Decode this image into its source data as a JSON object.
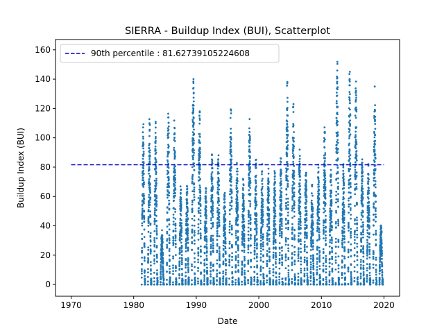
{
  "chart_data": {
    "type": "scatter",
    "title": "SIERRA - Buildup Index (BUI), Scatterplot",
    "xlabel": "Date",
    "ylabel": "Buildup Index (BUI)",
    "xlim": [
      1967.5,
      2022.5
    ],
    "ylim": [
      -8,
      167
    ],
    "xticks": [
      1970,
      1980,
      1990,
      2000,
      2010,
      2020
    ],
    "yticks": [
      0,
      20,
      40,
      60,
      80,
      100,
      120,
      140,
      160
    ],
    "grid": false,
    "legend_position": "top-left",
    "series": [
      {
        "name": "Buildup Index (BUI)",
        "kind": "scatter",
        "color": "#1f77b4",
        "seasons": [
          {
            "year": 1981,
            "max": 113
          },
          {
            "year": 1982,
            "max": 114
          },
          {
            "year": 1983,
            "max": 111
          },
          {
            "year": 1984,
            "max": 37
          },
          {
            "year": 1985,
            "max": 122
          },
          {
            "year": 1986,
            "max": 114
          },
          {
            "year": 1987,
            "max": 67
          },
          {
            "year": 1988,
            "max": 67
          },
          {
            "year": 1989,
            "max": 146
          },
          {
            "year": 1990,
            "max": 121
          },
          {
            "year": 1991,
            "max": 68
          },
          {
            "year": 1992,
            "max": 89
          },
          {
            "year": 1993,
            "max": 90
          },
          {
            "year": 1994,
            "max": 67
          },
          {
            "year": 1995,
            "max": 124
          },
          {
            "year": 1996,
            "max": 86
          },
          {
            "year": 1997,
            "max": 72
          },
          {
            "year": 1998,
            "max": 116
          },
          {
            "year": 1999,
            "max": 86
          },
          {
            "year": 2000,
            "max": 82
          },
          {
            "year": 2001,
            "max": 79
          },
          {
            "year": 2002,
            "max": 78
          },
          {
            "year": 2003,
            "max": 88
          },
          {
            "year": 2004,
            "max": 140
          },
          {
            "year": 2005,
            "max": 123
          },
          {
            "year": 2006,
            "max": 92
          },
          {
            "year": 2007,
            "max": 82
          },
          {
            "year": 2008,
            "max": 68
          },
          {
            "year": 2009,
            "max": 82
          },
          {
            "year": 2010,
            "max": 110
          },
          {
            "year": 2011,
            "max": 82
          },
          {
            "year": 2012,
            "max": 156
          },
          {
            "year": 2013,
            "max": 82
          },
          {
            "year": 2014,
            "max": 145
          },
          {
            "year": 2015,
            "max": 142
          },
          {
            "year": 2016,
            "max": 91
          },
          {
            "year": 2017,
            "max": 82
          },
          {
            "year": 2018,
            "max": 135
          },
          {
            "year": 2019,
            "max": 43
          }
        ]
      },
      {
        "name": "90th percentile : 81.62739105224608",
        "kind": "hline",
        "y": 81.62739105224608,
        "x_range": [
          1970,
          2020
        ],
        "color": "#0000cc",
        "style": "dashed"
      }
    ],
    "legend": [
      "90th percentile : 81.62739105224608"
    ]
  }
}
